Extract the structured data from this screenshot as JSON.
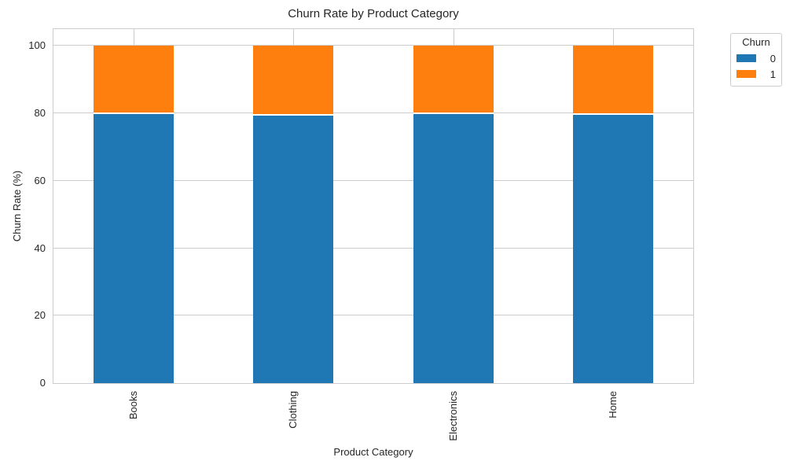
{
  "chart_data": {
    "type": "bar",
    "stacked": true,
    "title": "Churn Rate by Product Category",
    "xlabel": "Product Category",
    "ylabel": "Churn Rate (%)",
    "categories": [
      "Books",
      "Clothing",
      "Electronics",
      "Home"
    ],
    "series": [
      {
        "name": "0",
        "color": "#1f77b4",
        "values": [
          80.0,
          79.5,
          80.0,
          79.9
        ]
      },
      {
        "name": "1",
        "color": "#ff7f0e",
        "values": [
          20.0,
          20.5,
          20.0,
          20.1
        ]
      }
    ],
    "legend": {
      "title": "Churn",
      "entries": [
        "0",
        "1"
      ],
      "position": "outside-upper-right"
    },
    "ylim": [
      0,
      105
    ],
    "yticks": [
      0,
      20,
      40,
      60,
      80,
      100
    ],
    "grid": true,
    "grid_color": "#cccccc",
    "axis_color": "#cccccc",
    "text_color": "#262626",
    "segment_edge_color": "#ffffff",
    "x_tick_rotation_deg": 90
  }
}
